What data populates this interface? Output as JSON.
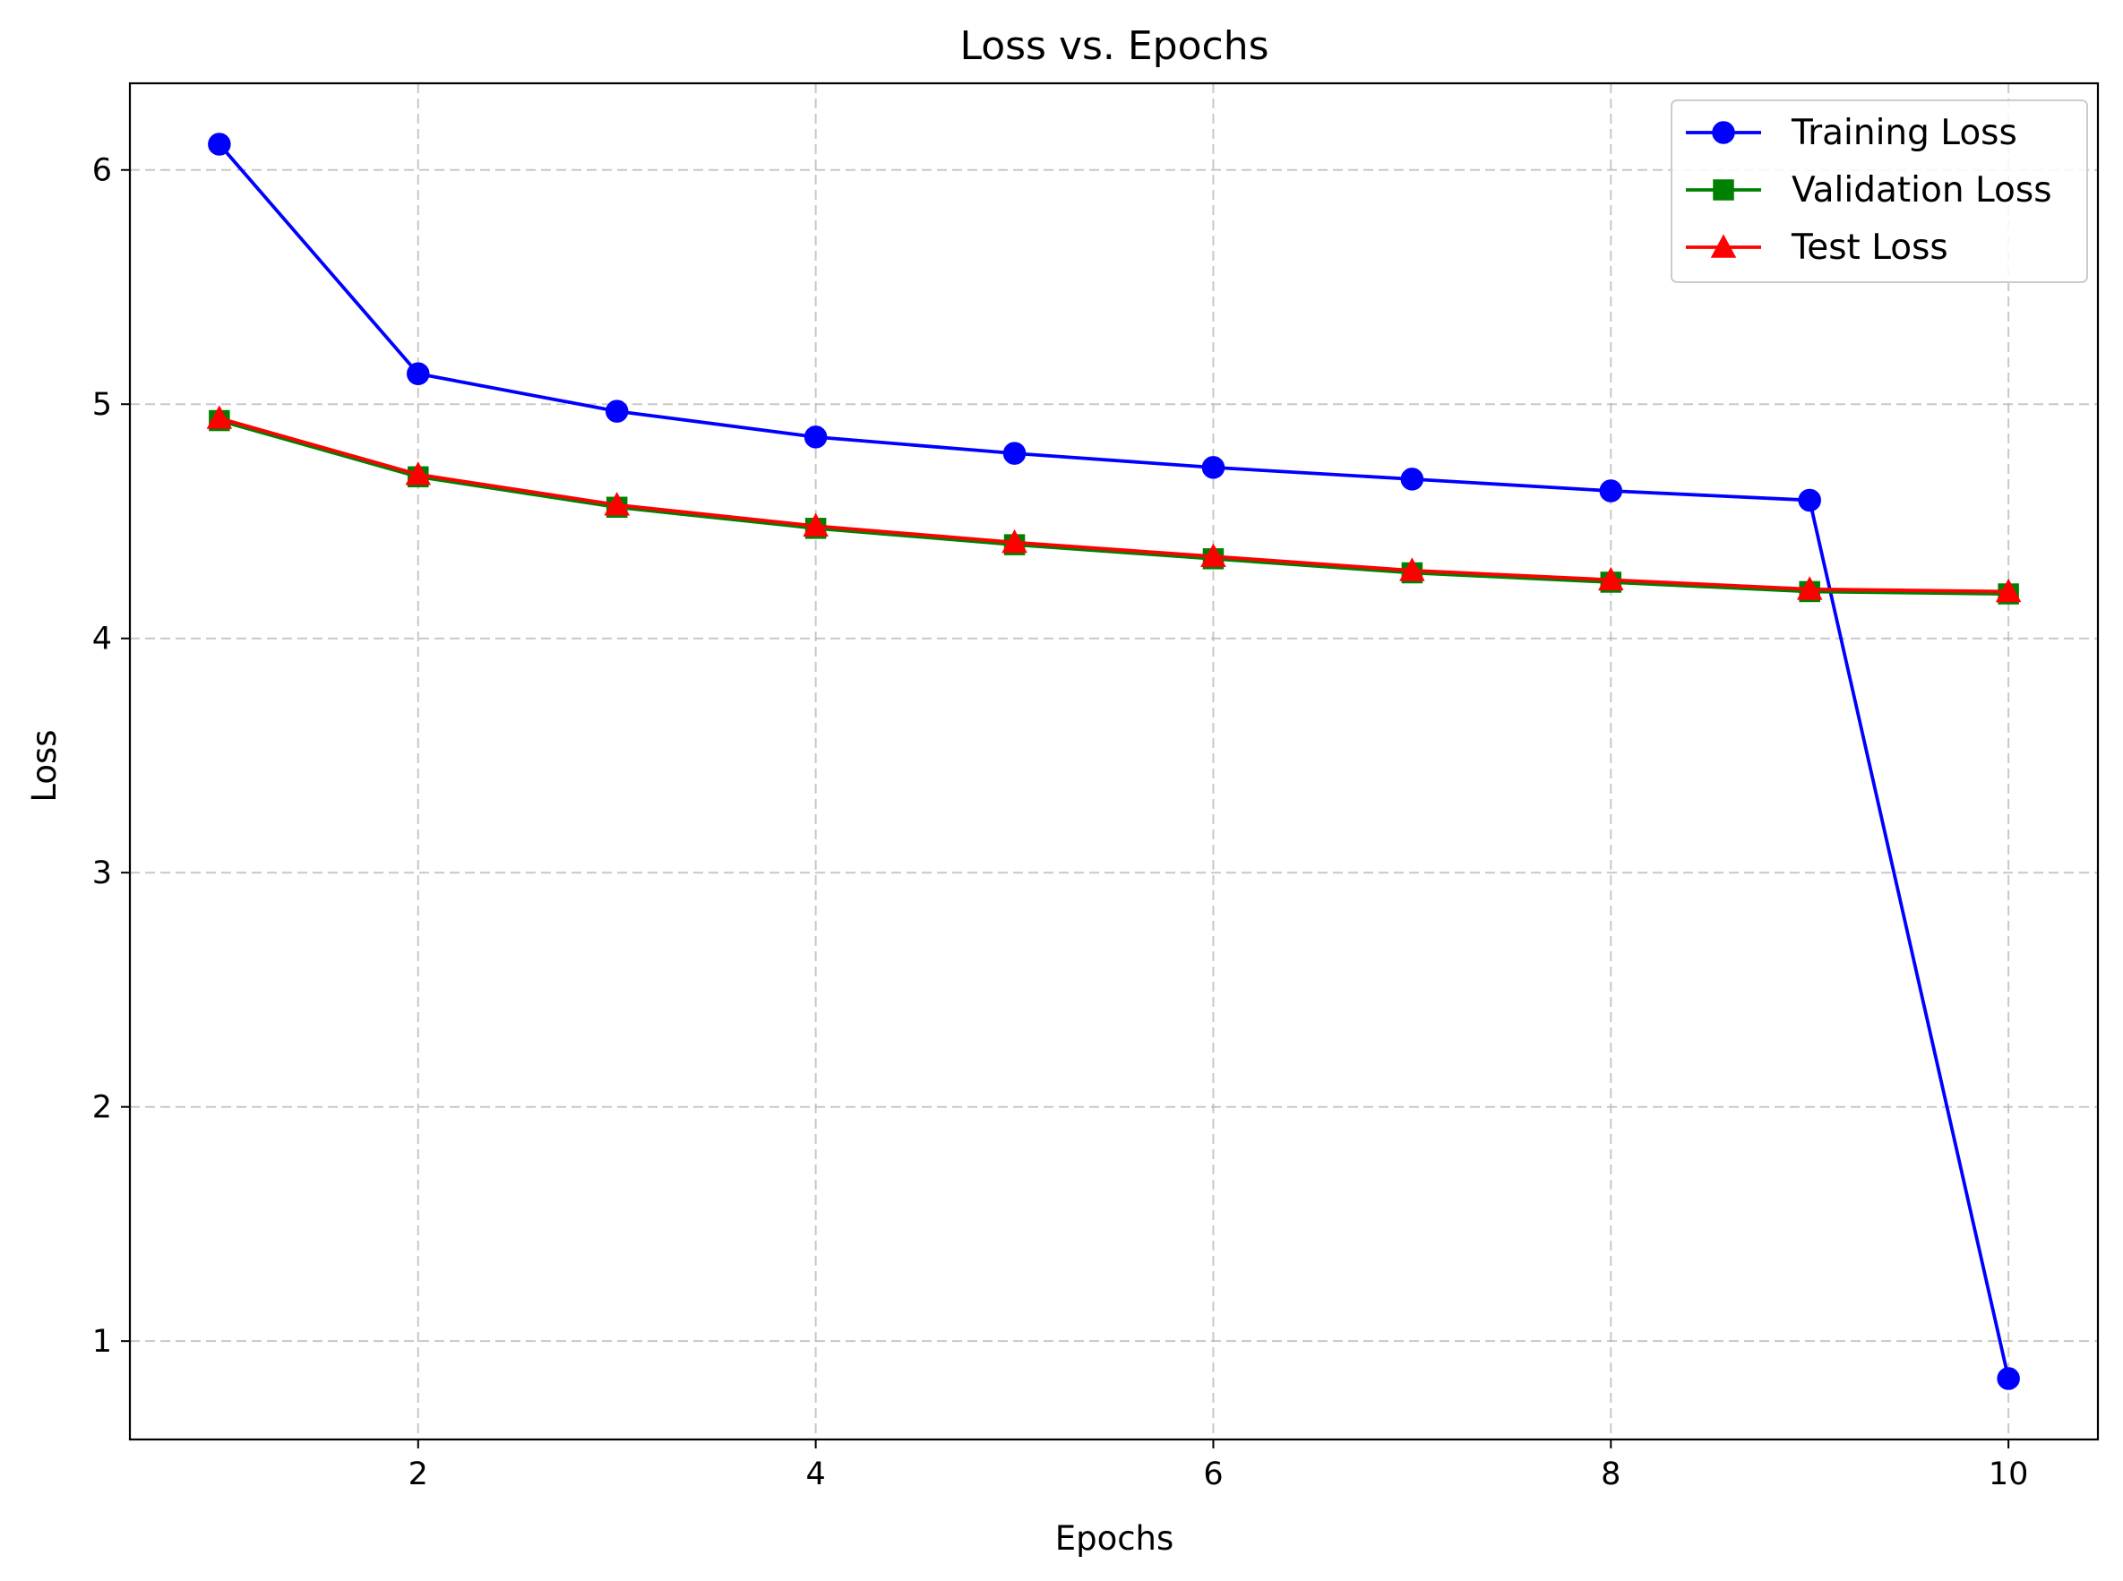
{
  "chart_data": {
    "type": "line",
    "title": "Loss vs. Epochs",
    "xlabel": "Epochs",
    "ylabel": "Loss",
    "xlim": [
      0.55,
      10.45
    ],
    "ylim": [
      0.58,
      6.37
    ],
    "xticks": [
      2,
      4,
      6,
      8,
      10
    ],
    "yticks": [
      1,
      2,
      3,
      4,
      5,
      6
    ],
    "grid": true,
    "legend_position": "top-right",
    "x": [
      1,
      2,
      3,
      4,
      5,
      6,
      7,
      8,
      9,
      10
    ],
    "series": [
      {
        "name": "Training Loss",
        "color": "#0000ff",
        "marker": "circle",
        "values": [
          6.11,
          5.13,
          4.97,
          4.86,
          4.79,
          4.73,
          4.68,
          4.63,
          4.59,
          0.84
        ]
      },
      {
        "name": "Validation Loss",
        "color": "#008000",
        "marker": "square",
        "values": [
          4.93,
          4.69,
          4.56,
          4.47,
          4.4,
          4.34,
          4.28,
          4.24,
          4.2,
          4.19
        ]
      },
      {
        "name": "Test Loss",
        "color": "#ff0000",
        "marker": "triangle",
        "values": [
          4.94,
          4.7,
          4.57,
          4.48,
          4.41,
          4.35,
          4.29,
          4.25,
          4.21,
          4.2
        ]
      }
    ]
  }
}
